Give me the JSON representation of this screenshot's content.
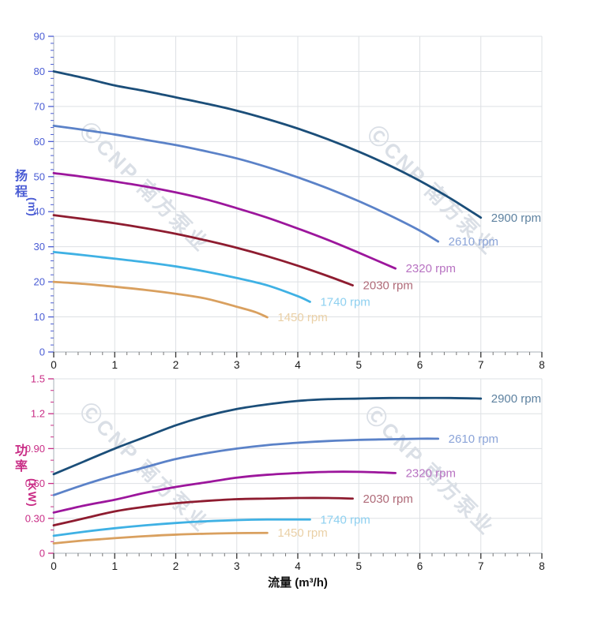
{
  "xlabel": "流量 (m³/h)",
  "watermark": {
    "text": "ⒸCNP 南方泵业"
  },
  "chart_data": [
    {
      "name": "head-vs-flow",
      "type": "line",
      "title": "",
      "xlabel": "流量 (m³/h)",
      "ylabel": "扬程(m)",
      "ylabel_cjk": "扬程",
      "ylabel_unit": "(m)",
      "axis_color": "#4a5cd4",
      "grid": true,
      "legend_position": "end-of-curve",
      "xlim": [
        0,
        8
      ],
      "ylim": [
        0,
        90
      ],
      "x_ticks": {
        "major": 1,
        "minor": 0.2,
        "labels": [
          {
            "v": 0,
            "t": "0"
          },
          {
            "v": 1,
            "t": "1"
          },
          {
            "v": 2,
            "t": "2"
          },
          {
            "v": 3,
            "t": "3"
          },
          {
            "v": 4,
            "t": "4"
          },
          {
            "v": 5,
            "t": "5"
          },
          {
            "v": 6,
            "t": "6"
          },
          {
            "v": 7,
            "t": "7"
          },
          {
            "v": 8,
            "t": "8"
          }
        ]
      },
      "y_ticks": {
        "major": 10,
        "minor": 2,
        "labels": [
          {
            "v": 0,
            "t": "0"
          },
          {
            "v": 10,
            "t": "10"
          },
          {
            "v": 20,
            "t": "20"
          },
          {
            "v": 30,
            "t": "30"
          },
          {
            "v": 40,
            "t": "40"
          },
          {
            "v": 50,
            "t": "50"
          },
          {
            "v": 60,
            "t": "60"
          },
          {
            "v": 70,
            "t": "70"
          },
          {
            "v": 80,
            "t": "80"
          },
          {
            "v": 90,
            "t": "90"
          }
        ]
      },
      "series": [
        {
          "name": "2900 rpm",
          "color": "#1b4e79",
          "label_color": "#5e82a0",
          "points": [
            [
              0,
              80
            ],
            [
              0.5,
              78.1
            ],
            [
              1,
              76
            ],
            [
              1.5,
              74.4
            ],
            [
              2,
              72.6
            ],
            [
              2.5,
              70.8
            ],
            [
              3,
              68.8
            ],
            [
              3.5,
              66.4
            ],
            [
              4,
              63.7
            ],
            [
              4.5,
              60.6
            ],
            [
              5,
              57.1
            ],
            [
              5.5,
              53.2
            ],
            [
              6,
              48.8
            ],
            [
              6.5,
              43.8
            ],
            [
              7,
              38.3
            ]
          ]
        },
        {
          "name": "2610 rpm",
          "color": "#5b82c8",
          "label_color": "#8ba4d8",
          "points": [
            [
              0,
              64.5
            ],
            [
              0.5,
              63.3
            ],
            [
              1,
              62
            ],
            [
              1.5,
              60.5
            ],
            [
              2,
              59
            ],
            [
              2.5,
              57.2
            ],
            [
              3,
              55.2
            ],
            [
              3.5,
              52.7
            ],
            [
              4,
              49.8
            ],
            [
              4.5,
              46.6
            ],
            [
              5,
              43
            ],
            [
              5.5,
              39
            ],
            [
              6,
              34.6
            ],
            [
              6.3,
              31.5
            ]
          ]
        },
        {
          "name": "2320 rpm",
          "color": "#9c169c",
          "label_color": "#b873c2",
          "points": [
            [
              0,
              51
            ],
            [
              0.5,
              49.9
            ],
            [
              1,
              48.6
            ],
            [
              1.5,
              47.2
            ],
            [
              2,
              45.5
            ],
            [
              2.5,
              43.5
            ],
            [
              3,
              41
            ],
            [
              3.5,
              38.3
            ],
            [
              4,
              35.2
            ],
            [
              4.5,
              31.9
            ],
            [
              5,
              28.3
            ],
            [
              5.6,
              23.8
            ]
          ]
        },
        {
          "name": "2030 rpm",
          "color": "#8e1c30",
          "label_color": "#af6a78",
          "points": [
            [
              0,
              39
            ],
            [
              0.5,
              37.9
            ],
            [
              1,
              36.7
            ],
            [
              1.5,
              35.3
            ],
            [
              2,
              33.7
            ],
            [
              2.5,
              31.8
            ],
            [
              3,
              29.7
            ],
            [
              3.5,
              27.3
            ],
            [
              4,
              24.6
            ],
            [
              4.5,
              21.6
            ],
            [
              4.9,
              19
            ]
          ]
        },
        {
          "name": "1740 rpm",
          "color": "#3fb1e4",
          "label_color": "#8ed0f0",
          "points": [
            [
              0,
              28.5
            ],
            [
              0.5,
              27.6
            ],
            [
              1,
              26.6
            ],
            [
              1.5,
              25.6
            ],
            [
              2,
              24.4
            ],
            [
              2.5,
              22.9
            ],
            [
              3,
              21.1
            ],
            [
              3.5,
              19
            ],
            [
              4,
              15.9
            ],
            [
              4.2,
              14.3
            ]
          ]
        },
        {
          "name": "1450 rpm",
          "color": "#d9a05f",
          "label_color": "#ead0a6",
          "points": [
            [
              0,
              20
            ],
            [
              0.5,
              19.4
            ],
            [
              1,
              18.6
            ],
            [
              1.5,
              17.7
            ],
            [
              2,
              16.6
            ],
            [
              2.5,
              15.2
            ],
            [
              3,
              12.9
            ],
            [
              3.3,
              11.4
            ],
            [
              3.5,
              9.9
            ]
          ]
        }
      ]
    },
    {
      "name": "power-vs-flow",
      "type": "line",
      "title": "",
      "xlabel": "流量 (m³/h)",
      "ylabel": "功率(KW)",
      "ylabel_cjk": "功率",
      "ylabel_unit": "(KW)",
      "axis_color": "#c92d86",
      "grid": true,
      "legend_position": "end-of-curve",
      "xlim": [
        0,
        8
      ],
      "ylim": [
        0,
        1.5
      ],
      "x_ticks": {
        "major": 1,
        "minor": 0.2,
        "labels": [
          {
            "v": 0,
            "t": "0"
          },
          {
            "v": 1,
            "t": "1"
          },
          {
            "v": 2,
            "t": "2"
          },
          {
            "v": 3,
            "t": "3"
          },
          {
            "v": 4,
            "t": "4"
          },
          {
            "v": 5,
            "t": "5"
          },
          {
            "v": 6,
            "t": "6"
          },
          {
            "v": 7,
            "t": "7"
          },
          {
            "v": 8,
            "t": "8"
          }
        ]
      },
      "y_ticks": {
        "major": 0.3,
        "minor": 0.1,
        "labels": [
          {
            "v": 0,
            "t": "0"
          },
          {
            "v": 0.3,
            "t": "0.30"
          },
          {
            "v": 0.6,
            "t": "0.60"
          },
          {
            "v": 0.9,
            "t": "0.90"
          },
          {
            "v": 1.2,
            "t": "1.2"
          },
          {
            "v": 1.5,
            "t": "1.5"
          }
        ]
      },
      "series": [
        {
          "name": "2900 rpm",
          "color": "#1b4e79",
          "label_color": "#5e82a0",
          "points": [
            [
              0,
              0.68
            ],
            [
              0.5,
              0.79
            ],
            [
              1,
              0.9
            ],
            [
              1.5,
              1.0
            ],
            [
              2,
              1.1
            ],
            [
              2.5,
              1.18
            ],
            [
              3,
              1.24
            ],
            [
              3.5,
              1.28
            ],
            [
              4,
              1.31
            ],
            [
              4.5,
              1.325
            ],
            [
              5,
              1.33
            ],
            [
              5.5,
              1.335
            ],
            [
              6,
              1.335
            ],
            [
              6.5,
              1.335
            ],
            [
              7,
              1.33
            ]
          ]
        },
        {
          "name": "2610 rpm",
          "color": "#5b82c8",
          "label_color": "#8ba4d8",
          "points": [
            [
              0,
              0.5
            ],
            [
              0.5,
              0.59
            ],
            [
              1,
              0.67
            ],
            [
              1.5,
              0.74
            ],
            [
              2,
              0.81
            ],
            [
              2.5,
              0.86
            ],
            [
              3,
              0.9
            ],
            [
              3.5,
              0.93
            ],
            [
              4,
              0.95
            ],
            [
              4.5,
              0.965
            ],
            [
              5,
              0.975
            ],
            [
              5.5,
              0.98
            ],
            [
              6,
              0.985
            ],
            [
              6.3,
              0.985
            ]
          ]
        },
        {
          "name": "2320 rpm",
          "color": "#9c169c",
          "label_color": "#b873c2",
          "points": [
            [
              0,
              0.35
            ],
            [
              0.5,
              0.41
            ],
            [
              1,
              0.46
            ],
            [
              1.5,
              0.52
            ],
            [
              2,
              0.57
            ],
            [
              2.5,
              0.61
            ],
            [
              3,
              0.65
            ],
            [
              3.5,
              0.675
            ],
            [
              4,
              0.69
            ],
            [
              4.5,
              0.7
            ],
            [
              5,
              0.7
            ],
            [
              5.6,
              0.69
            ]
          ]
        },
        {
          "name": "2030 rpm",
          "color": "#8e1c30",
          "label_color": "#af6a78",
          "points": [
            [
              0,
              0.24
            ],
            [
              0.5,
              0.3
            ],
            [
              1,
              0.36
            ],
            [
              1.5,
              0.4
            ],
            [
              2,
              0.43
            ],
            [
              2.5,
              0.45
            ],
            [
              3,
              0.465
            ],
            [
              3.5,
              0.47
            ],
            [
              4,
              0.475
            ],
            [
              4.5,
              0.475
            ],
            [
              4.9,
              0.47
            ]
          ]
        },
        {
          "name": "1740 rpm",
          "color": "#3fb1e4",
          "label_color": "#8ed0f0",
          "points": [
            [
              0,
              0.15
            ],
            [
              0.5,
              0.185
            ],
            [
              1,
              0.215
            ],
            [
              1.5,
              0.24
            ],
            [
              2,
              0.26
            ],
            [
              2.5,
              0.275
            ],
            [
              3,
              0.285
            ],
            [
              3.5,
              0.29
            ],
            [
              4,
              0.29
            ],
            [
              4.2,
              0.29
            ]
          ]
        },
        {
          "name": "1450 rpm",
          "color": "#d9a05f",
          "label_color": "#ead0a6",
          "points": [
            [
              0,
              0.085
            ],
            [
              0.5,
              0.11
            ],
            [
              1,
              0.13
            ],
            [
              1.5,
              0.147
            ],
            [
              2,
              0.16
            ],
            [
              2.5,
              0.168
            ],
            [
              3,
              0.173
            ],
            [
              3.5,
              0.175
            ]
          ]
        }
      ]
    }
  ]
}
